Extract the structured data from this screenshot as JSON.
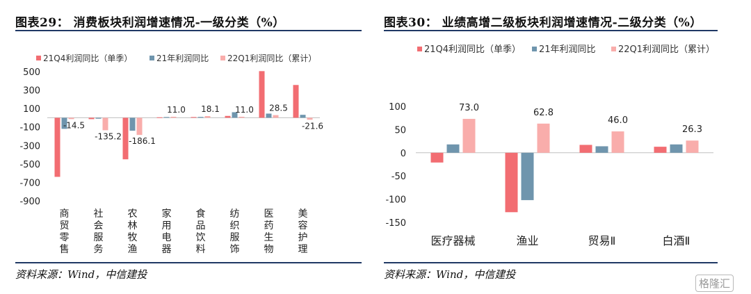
{
  "chart_data": [
    {
      "type": "bar",
      "title": "图表29： 消费板块利润增速情况-一级分类（%）",
      "source": "资料来源：Wind，中信建投",
      "legend_position": "top",
      "categories": [
        "商贸零售",
        "社会服务",
        "农林牧渔",
        "家用电器",
        "食品饮料",
        "纺织服饰",
        "医药生物",
        "美容护理"
      ],
      "series": [
        {
          "name": "21Q4利润同比（单季）",
          "color": "#f26d72",
          "values": [
            -640,
            -15,
            -450,
            5,
            8,
            20,
            505,
            355
          ]
        },
        {
          "name": "21年利润同比",
          "color": "#6f95ad",
          "values": [
            -120,
            -10,
            -140,
            8,
            9,
            60,
            45,
            32
          ]
        },
        {
          "name": "22Q1利润同比（累计）",
          "color": "#f9adab",
          "values": [
            -14.5,
            -135.2,
            -186.1,
            11.0,
            18.1,
            11.0,
            28.5,
            -21.6
          ]
        }
      ],
      "data_labels": [
        "-14.5",
        "-135.2",
        "-186.1",
        "11.0",
        "18.1",
        "11.0",
        "28.5",
        "-21.6"
      ],
      "ylim": [
        -900,
        500
      ],
      "yticks": [
        500,
        300,
        100,
        -100,
        -300,
        -500,
        -700,
        -900
      ],
      "grid": false
    },
    {
      "type": "bar",
      "title": "图表30： 业绩高增二级板块利润增速情况-二级分类（%）",
      "source": "资料来源：Wind，中信建投",
      "legend_position": "top",
      "categories": [
        "医疗器械",
        "渔业",
        "贸易Ⅱ",
        "白酒Ⅱ"
      ],
      "series": [
        {
          "name": "21Q4利润同比（单季）",
          "color": "#f26d72",
          "values": [
            -21,
            -128,
            17,
            13
          ]
        },
        {
          "name": "21年利润同比",
          "color": "#6f95ad",
          "values": [
            18,
            -102,
            14,
            18
          ]
        },
        {
          "name": "22Q1利润同比（累计）",
          "color": "#f9adab",
          "values": [
            73.0,
            62.8,
            46.0,
            26.3
          ]
        }
      ],
      "data_labels": [
        "73.0",
        "62.8",
        "46.0",
        "26.3"
      ],
      "ylim": [
        -150,
        100
      ],
      "yticks": [
        100,
        50,
        0,
        -50,
        -100,
        -150
      ],
      "grid": false
    }
  ],
  "watermark": "格隆汇"
}
